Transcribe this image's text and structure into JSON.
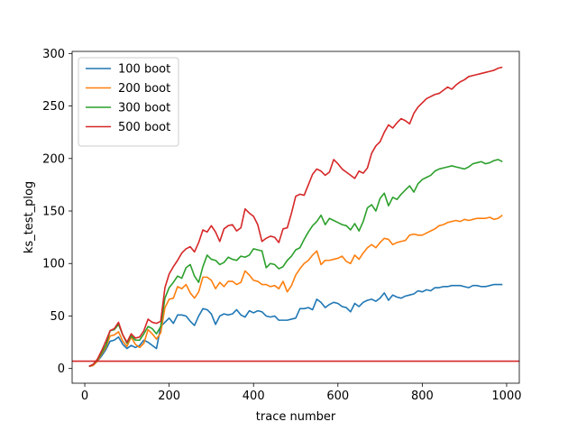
{
  "chart_data": {
    "type": "line",
    "title": "",
    "xlabel": "trace number",
    "ylabel": "ks_test_plog",
    "xlim": [
      -30,
      1030
    ],
    "ylim": [
      -14,
      302
    ],
    "xticks": [
      0,
      200,
      400,
      600,
      800,
      1000
    ],
    "yticks": [
      0,
      50,
      100,
      150,
      200,
      250,
      300
    ],
    "grid": false,
    "legend_position": "top-left",
    "hline": {
      "y": 7,
      "color": "#d62728"
    },
    "x": [
      10,
      20,
      30,
      40,
      50,
      60,
      70,
      80,
      90,
      100,
      110,
      120,
      130,
      140,
      150,
      160,
      170,
      180,
      190,
      200,
      210,
      220,
      230,
      240,
      250,
      260,
      270,
      280,
      290,
      300,
      310,
      320,
      330,
      340,
      350,
      360,
      370,
      380,
      390,
      400,
      410,
      420,
      430,
      440,
      450,
      460,
      470,
      480,
      490,
      500,
      510,
      520,
      530,
      540,
      550,
      560,
      570,
      580,
      590,
      600,
      610,
      620,
      630,
      640,
      650,
      660,
      670,
      680,
      690,
      700,
      710,
      720,
      730,
      740,
      750,
      760,
      770,
      780,
      790,
      800,
      810,
      820,
      830,
      840,
      850,
      860,
      870,
      880,
      890,
      900,
      910,
      920,
      930,
      940,
      950,
      960,
      970,
      980,
      990
    ],
    "series": [
      {
        "name": "100 boot",
        "color": "#1f77b4",
        "values": [
          2,
          3,
          7,
          12,
          18,
          26,
          27,
          30,
          23,
          19,
          22,
          20,
          22,
          27,
          25,
          22,
          19,
          40,
          44,
          48,
          43,
          51,
          51,
          50,
          45,
          41,
          50,
          57,
          56,
          52,
          42,
          50,
          52,
          51,
          52,
          56,
          51,
          49,
          55,
          53,
          55,
          54,
          50,
          49,
          50,
          46,
          46,
          46,
          47,
          48,
          57,
          57,
          58,
          56,
          66,
          63,
          58,
          61,
          63,
          62,
          59,
          58,
          54,
          62,
          59,
          63,
          65,
          66,
          64,
          67,
          72,
          65,
          70,
          68,
          67,
          69,
          70,
          71,
          74,
          73,
          75,
          74,
          77,
          77,
          78,
          78,
          79,
          79,
          79,
          78,
          77,
          79,
          79,
          78,
          78,
          79,
          80,
          80,
          80
        ]
      },
      {
        "name": "200 boot",
        "color": "#ff7f0e",
        "values": [
          2,
          3,
          7,
          14,
          20,
          31,
          32,
          35,
          26,
          21,
          30,
          23,
          20,
          24,
          37,
          33,
          28,
          34,
          58,
          66,
          67,
          78,
          76,
          80,
          72,
          67,
          73,
          87,
          87,
          84,
          76,
          82,
          78,
          83,
          83,
          80,
          82,
          93,
          89,
          84,
          83,
          80,
          80,
          78,
          79,
          76,
          83,
          73,
          79,
          89,
          95,
          100,
          103,
          108,
          112,
          99,
          103,
          103,
          104,
          105,
          107,
          102,
          100,
          108,
          104,
          110,
          115,
          118,
          115,
          120,
          124,
          123,
          118,
          120,
          121,
          122,
          127,
          128,
          127,
          127,
          129,
          131,
          133,
          136,
          137,
          139,
          140,
          141,
          140,
          142,
          141,
          142,
          143,
          143,
          143,
          144,
          142,
          143,
          146
        ]
      },
      {
        "name": "300 boot",
        "color": "#2ca02c",
        "values": [
          2,
          4,
          8,
          15,
          22,
          36,
          37,
          42,
          32,
          24,
          31,
          27,
          27,
          33,
          40,
          38,
          33,
          40,
          67,
          77,
          82,
          88,
          86,
          96,
          99,
          88,
          82,
          97,
          108,
          104,
          103,
          99,
          101,
          106,
          104,
          103,
          107,
          106,
          108,
          114,
          113,
          112,
          96,
          100,
          99,
          95,
          97,
          103,
          107,
          113,
          115,
          123,
          130,
          136,
          140,
          146,
          137,
          143,
          141,
          139,
          137,
          136,
          132,
          138,
          131,
          140,
          153,
          156,
          150,
          162,
          167,
          155,
          163,
          161,
          166,
          170,
          174,
          168,
          176,
          180,
          182,
          184,
          188,
          190,
          191,
          192,
          193,
          192,
          191,
          190,
          192,
          195,
          196,
          197,
          195,
          196,
          198,
          199,
          197
        ]
      },
      {
        "name": "500 boot",
        "color": "#d62728",
        "values": [
          2,
          4,
          9,
          17,
          26,
          36,
          38,
          44,
          32,
          25,
          33,
          29,
          30,
          36,
          47,
          44,
          43,
          45,
          77,
          90,
          97,
          103,
          110,
          114,
          116,
          111,
          120,
          132,
          130,
          136,
          130,
          121,
          133,
          136,
          137,
          131,
          134,
          152,
          148,
          145,
          137,
          121,
          124,
          126,
          125,
          120,
          133,
          134,
          148,
          164,
          166,
          165,
          175,
          185,
          190,
          188,
          184,
          187,
          199,
          195,
          190,
          187,
          184,
          181,
          188,
          186,
          191,
          205,
          212,
          216,
          225,
          232,
          229,
          234,
          238,
          236,
          233,
          243,
          249,
          253,
          257,
          259,
          261,
          262,
          265,
          268,
          266,
          270,
          273,
          275,
          278,
          279,
          280,
          281,
          282,
          283,
          284,
          286,
          287
        ]
      }
    ]
  }
}
